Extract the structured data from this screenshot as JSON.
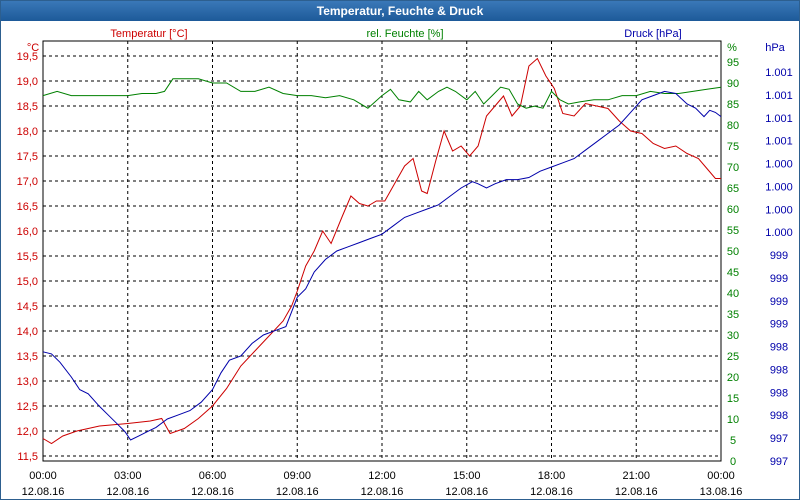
{
  "window": {
    "title": "Temperatur, Feuchte & Druck"
  },
  "colors": {
    "temp": "#cc0000",
    "hum": "#008000",
    "press": "#0000aa",
    "grid": "#000000",
    "titlebar": "#2a66a5"
  },
  "chart_data": {
    "type": "line",
    "title": "Temperatur, Feuchte & Druck",
    "grid": true,
    "x_ticks": [
      {
        "time": "00:00",
        "date": "12.08.16"
      },
      {
        "time": "03:00",
        "date": "12.08.16"
      },
      {
        "time": "06:00",
        "date": "12.08.16"
      },
      {
        "time": "09:00",
        "date": "12.08.16"
      },
      {
        "time": "12:00",
        "date": "12.08.16"
      },
      {
        "time": "15:00",
        "date": "12.08.16"
      },
      {
        "time": "18:00",
        "date": "12.08.16"
      },
      {
        "time": "21:00",
        "date": "12.08.16"
      },
      {
        "time": "00:00",
        "date": "13.08.16"
      }
    ],
    "xlim": [
      0,
      24
    ],
    "axes": {
      "temp": {
        "header": "Temperatur [°C]",
        "unit": "°C",
        "range": [
          11.4,
          19.8
        ],
        "ticks": [
          "11,5",
          "12,0",
          "12,5",
          "13,0",
          "13,5",
          "14,0",
          "14,5",
          "15,0",
          "15,5",
          "16,0",
          "16,5",
          "17,0",
          "17,5",
          "18,0",
          "18,5",
          "19,0",
          "19,5"
        ]
      },
      "hum": {
        "header": "rel. Feuchte [%]",
        "unit": "%",
        "range": [
          0,
          100
        ],
        "ticks": [
          "0",
          "5",
          "10",
          "15",
          "20",
          "25",
          "30",
          "35",
          "40",
          "45",
          "50",
          "55",
          "60",
          "65",
          "70",
          "75",
          "80",
          "85",
          "90",
          "95"
        ]
      },
      "press": {
        "header": "Druck [hPa]",
        "unit": "hPa",
        "ticks": [
          "997",
          "997",
          "998",
          "998",
          "998",
          "998",
          "999",
          "999",
          "999",
          "999",
          "1.000",
          "1.000",
          "1.000",
          "1.000",
          "1.001",
          "1.001",
          "1.001",
          "1.001"
        ]
      }
    },
    "series": [
      {
        "name": "Temperatur [°C]",
        "axis": "temp",
        "points": [
          [
            0,
            11.85
          ],
          [
            0.3,
            11.75
          ],
          [
            0.7,
            11.9
          ],
          [
            1.2,
            12.0
          ],
          [
            2.0,
            12.1
          ],
          [
            3.0,
            12.15
          ],
          [
            3.8,
            12.2
          ],
          [
            4.2,
            12.25
          ],
          [
            4.5,
            11.95
          ],
          [
            5.0,
            12.05
          ],
          [
            5.5,
            12.25
          ],
          [
            6.0,
            12.5
          ],
          [
            6.5,
            12.85
          ],
          [
            7.0,
            13.3
          ],
          [
            7.5,
            13.6
          ],
          [
            8.0,
            13.9
          ],
          [
            8.5,
            14.2
          ],
          [
            8.8,
            14.5
          ],
          [
            9.0,
            14.8
          ],
          [
            9.3,
            15.3
          ],
          [
            9.6,
            15.6
          ],
          [
            9.9,
            16.0
          ],
          [
            10.2,
            15.75
          ],
          [
            10.6,
            16.3
          ],
          [
            10.9,
            16.7
          ],
          [
            11.2,
            16.55
          ],
          [
            11.5,
            16.5
          ],
          [
            11.8,
            16.6
          ],
          [
            12.1,
            16.6
          ],
          [
            12.5,
            17.0
          ],
          [
            12.8,
            17.3
          ],
          [
            13.1,
            17.45
          ],
          [
            13.4,
            16.8
          ],
          [
            13.6,
            16.75
          ],
          [
            13.9,
            17.4
          ],
          [
            14.2,
            18.0
          ],
          [
            14.5,
            17.6
          ],
          [
            14.8,
            17.7
          ],
          [
            15.1,
            17.5
          ],
          [
            15.4,
            17.7
          ],
          [
            15.7,
            18.3
          ],
          [
            16.0,
            18.5
          ],
          [
            16.3,
            18.7
          ],
          [
            16.6,
            18.3
          ],
          [
            16.9,
            18.5
          ],
          [
            17.2,
            19.3
          ],
          [
            17.5,
            19.45
          ],
          [
            17.8,
            19.1
          ],
          [
            18.1,
            18.85
          ],
          [
            18.4,
            18.35
          ],
          [
            18.8,
            18.3
          ],
          [
            19.2,
            18.55
          ],
          [
            19.6,
            18.5
          ],
          [
            20.0,
            18.45
          ],
          [
            20.4,
            18.2
          ],
          [
            20.8,
            18.0
          ],
          [
            21.2,
            17.95
          ],
          [
            21.6,
            17.75
          ],
          [
            22.0,
            17.65
          ],
          [
            22.4,
            17.7
          ],
          [
            22.8,
            17.55
          ],
          [
            23.2,
            17.45
          ],
          [
            23.5,
            17.25
          ],
          [
            23.8,
            17.05
          ],
          [
            24.0,
            17.05
          ]
        ]
      },
      {
        "name": "rel. Feuchte [%]",
        "axis": "hum",
        "points": [
          [
            0,
            87
          ],
          [
            0.5,
            88
          ],
          [
            1.0,
            87
          ],
          [
            2.0,
            87
          ],
          [
            3.0,
            87
          ],
          [
            3.5,
            87.5
          ],
          [
            4.0,
            87.5
          ],
          [
            4.3,
            88
          ],
          [
            4.6,
            91
          ],
          [
            5.0,
            91
          ],
          [
            5.5,
            91
          ],
          [
            6.0,
            90
          ],
          [
            6.5,
            90
          ],
          [
            7.0,
            88
          ],
          [
            7.5,
            88
          ],
          [
            8.0,
            89
          ],
          [
            8.5,
            87.5
          ],
          [
            9.0,
            87
          ],
          [
            9.5,
            87
          ],
          [
            10.0,
            86.5
          ],
          [
            10.5,
            87
          ],
          [
            11.0,
            86
          ],
          [
            11.5,
            84
          ],
          [
            12.0,
            87
          ],
          [
            12.3,
            88.5
          ],
          [
            12.6,
            86
          ],
          [
            13.0,
            85.5
          ],
          [
            13.3,
            88
          ],
          [
            13.6,
            86
          ],
          [
            14.0,
            88
          ],
          [
            14.3,
            89
          ],
          [
            14.6,
            88
          ],
          [
            15.0,
            86
          ],
          [
            15.3,
            88
          ],
          [
            15.6,
            85
          ],
          [
            15.9,
            87
          ],
          [
            16.2,
            89
          ],
          [
            16.5,
            88.5
          ],
          [
            16.8,
            85
          ],
          [
            17.1,
            84
          ],
          [
            17.4,
            84.5
          ],
          [
            17.7,
            84
          ],
          [
            18.0,
            88
          ],
          [
            18.3,
            86
          ],
          [
            18.6,
            85
          ],
          [
            19.0,
            85.5
          ],
          [
            19.5,
            86
          ],
          [
            20.0,
            86
          ],
          [
            20.5,
            87
          ],
          [
            21.0,
            87
          ],
          [
            21.5,
            88
          ],
          [
            22.0,
            87.5
          ],
          [
            22.5,
            87.5
          ],
          [
            23.0,
            88
          ],
          [
            23.5,
            88.5
          ],
          [
            24.0,
            89
          ]
        ]
      },
      {
        "name": "Druck [hPa]",
        "axis": "press",
        "points": [
          [
            0,
            0.26
          ],
          [
            0.3,
            0.255
          ],
          [
            0.6,
            0.235
          ],
          [
            1.0,
            0.2
          ],
          [
            1.3,
            0.17
          ],
          [
            1.6,
            0.16
          ],
          [
            2.0,
            0.13
          ],
          [
            2.3,
            0.11
          ],
          [
            2.6,
            0.09
          ],
          [
            2.9,
            0.07
          ],
          [
            3.1,
            0.05
          ],
          [
            3.4,
            0.06
          ],
          [
            3.7,
            0.07
          ],
          [
            4.0,
            0.08
          ],
          [
            4.4,
            0.1
          ],
          [
            4.8,
            0.11
          ],
          [
            5.2,
            0.12
          ],
          [
            5.6,
            0.14
          ],
          [
            6.0,
            0.17
          ],
          [
            6.3,
            0.21
          ],
          [
            6.6,
            0.24
          ],
          [
            7.0,
            0.25
          ],
          [
            7.4,
            0.28
          ],
          [
            7.8,
            0.3
          ],
          [
            8.2,
            0.31
          ],
          [
            8.6,
            0.32
          ],
          [
            9.0,
            0.39
          ],
          [
            9.3,
            0.41
          ],
          [
            9.6,
            0.45
          ],
          [
            10.0,
            0.48
          ],
          [
            10.4,
            0.5
          ],
          [
            10.8,
            0.51
          ],
          [
            11.2,
            0.52
          ],
          [
            11.6,
            0.53
          ],
          [
            12.0,
            0.54
          ],
          [
            12.4,
            0.56
          ],
          [
            12.8,
            0.58
          ],
          [
            13.2,
            0.59
          ],
          [
            13.6,
            0.6
          ],
          [
            14.0,
            0.61
          ],
          [
            14.4,
            0.63
          ],
          [
            14.8,
            0.65
          ],
          [
            15.2,
            0.665
          ],
          [
            15.4,
            0.66
          ],
          [
            15.7,
            0.65
          ],
          [
            16.0,
            0.66
          ],
          [
            16.4,
            0.67
          ],
          [
            16.8,
            0.67
          ],
          [
            17.2,
            0.675
          ],
          [
            17.6,
            0.69
          ],
          [
            18.0,
            0.7
          ],
          [
            18.4,
            0.71
          ],
          [
            18.8,
            0.72
          ],
          [
            19.2,
            0.74
          ],
          [
            19.6,
            0.76
          ],
          [
            20.0,
            0.78
          ],
          [
            20.4,
            0.8
          ],
          [
            20.8,
            0.83
          ],
          [
            21.2,
            0.86
          ],
          [
            21.6,
            0.87
          ],
          [
            22.0,
            0.88
          ],
          [
            22.4,
            0.875
          ],
          [
            22.8,
            0.85
          ],
          [
            23.1,
            0.84
          ],
          [
            23.4,
            0.82
          ],
          [
            23.6,
            0.835
          ],
          [
            23.8,
            0.83
          ],
          [
            24.0,
            0.82
          ]
        ]
      }
    ]
  }
}
